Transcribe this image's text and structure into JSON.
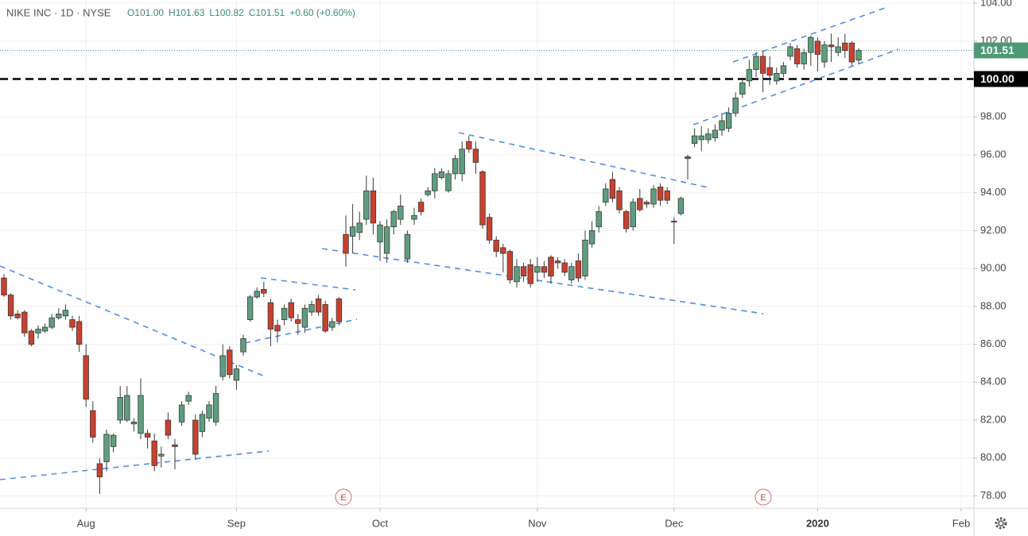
{
  "chart_data": {
    "type": "candlestick",
    "title": "NIKE INC · 1D · NYSE",
    "ohlc_text": [
      "O101.00",
      "H101.63",
      "L100.82",
      "C101.51",
      "+0.60 (+0.60%)"
    ],
    "up_color": "#5e9e7e",
    "down_color": "#c9402f",
    "wick_color": "#3a3a3a",
    "grid": true,
    "ylim": [
      77.35,
      104.17
    ],
    "yticks": [
      {
        "value": 78,
        "label": "78.00"
      },
      {
        "value": 80,
        "label": "80.00"
      },
      {
        "value": 82,
        "label": "82.00"
      },
      {
        "value": 84,
        "label": "84.00"
      },
      {
        "value": 86,
        "label": "86.00"
      },
      {
        "value": 88,
        "label": "88.00"
      },
      {
        "value": 90,
        "label": "90.00"
      },
      {
        "value": 92,
        "label": "92.00"
      },
      {
        "value": 94,
        "label": "94.00"
      },
      {
        "value": 96,
        "label": "96.00"
      },
      {
        "value": 98,
        "label": "98.00"
      },
      {
        "value": 100,
        "label": "100.00"
      },
      {
        "value": 102,
        "label": "102.00"
      },
      {
        "value": 104,
        "label": "104.00"
      }
    ],
    "price_lines": [
      {
        "value": 100,
        "label": "100.00",
        "color": "#000000",
        "style": "dashed"
      },
      {
        "value": 101.51,
        "label": "101.51",
        "color": "#4e9a75",
        "style": "dotted"
      }
    ],
    "events": [
      "E",
      "E"
    ],
    "categories": [
      null,
      null,
      null,
      null,
      null,
      null,
      null,
      null,
      null,
      null,
      null,
      null,
      "Aug",
      null,
      null,
      null,
      null,
      null,
      null,
      null,
      null,
      null,
      null,
      null,
      null,
      null,
      null,
      null,
      null,
      null,
      null,
      null,
      null,
      null,
      "Sep",
      null,
      null,
      null,
      null,
      null,
      null,
      null,
      null,
      null,
      null,
      null,
      null,
      null,
      null,
      null,
      null,
      null,
      null,
      null,
      null,
      "Oct",
      null,
      null,
      null,
      null,
      null,
      null,
      null,
      null,
      null,
      null,
      null,
      null,
      null,
      null,
      null,
      null,
      null,
      null,
      null,
      null,
      null,
      null,
      "Nov",
      null,
      null,
      null,
      null,
      null,
      null,
      null,
      null,
      null,
      null,
      null,
      null,
      null,
      null,
      null,
      null,
      null,
      null,
      null,
      "Dec",
      null,
      null,
      null,
      null,
      null,
      null,
      null,
      null,
      null,
      null,
      null,
      null,
      null,
      null,
      null,
      null,
      null,
      null,
      null,
      null,
      "2020",
      null,
      null,
      null,
      null,
      null,
      null,
      null,
      null,
      null,
      null,
      null,
      null,
      null,
      null,
      null,
      null,
      null,
      null,
      null,
      null,
      "Feb"
    ],
    "open": [
      89.5,
      88.6,
      87.6,
      87.7,
      86.7,
      86.6,
      86.7,
      86.9,
      87.4,
      87.5,
      87.3,
      87.2,
      85.4,
      82.5,
      79.7,
      79.8,
      80.6,
      82.0,
      82.0,
      81.8,
      81.3,
      81.3,
      80.9,
      80.1,
      82.0,
      80.7,
      81.9,
      83.0,
      82.0,
      81.4,
      82.1,
      81.9,
      84.3,
      85.7,
      84.1,
      85.6,
      87.3,
      88.5,
      88.9,
      88.2,
      87.0,
      87.3,
      88.2,
      87.3,
      86.9,
      87.7,
      88.4,
      88.1,
      86.9,
      88.4,
      91.8,
      91.7,
      91.9,
      92.6,
      94.1,
      91.4,
      90.8,
      92.2,
      92.6,
      90.5,
      92.6,
      93.5,
      93.9,
      94.1,
      94.8,
      94.1,
      95.0,
      95.0,
      96.7,
      96.3,
      95.1,
      92.7,
      91.5,
      91.1,
      90.9,
      89.3,
      90.1,
      90.2,
      89.8,
      90.1,
      90.6,
      90.4,
      90.3,
      89.4,
      90.4,
      89.6,
      91.3,
      92.2,
      93.5,
      94.7,
      94.1,
      93.0,
      92.2,
      93.7,
      93.5,
      93.4,
      94.3,
      94.1,
      92.5,
      92.9,
      95.9,
      96.6,
      96.8,
      96.8,
      96.9,
      97.3,
      97.4,
      98.2,
      99.2,
      99.9,
      100.5,
      101.2,
      100.6,
      99.9,
      100.3,
      101.2,
      101.6,
      100.8,
      101.4,
      102.0,
      100.9,
      101.8,
      101.4,
      101.9,
      101.9,
      101.0,
      null,
      null,
      null,
      null,
      null,
      null,
      null,
      null,
      null,
      null,
      null,
      null,
      null,
      null,
      null
    ],
    "high": [
      89.7,
      88.7,
      87.8,
      87.8,
      86.8,
      87.0,
      87.1,
      87.6,
      87.9,
      88.1,
      87.5,
      87.5,
      86.0,
      83.0,
      80.0,
      81.5,
      81.3,
      83.8,
      83.8,
      82.1,
      84.2,
      81.5,
      81.3,
      80.6,
      82.4,
      81.0,
      83.0,
      83.5,
      82.3,
      82.5,
      83.0,
      83.8,
      86.0,
      85.9,
      84.9,
      86.5,
      88.6,
      89.0,
      89.3,
      88.4,
      87.3,
      88.1,
      88.4,
      87.6,
      88.1,
      88.3,
      88.6,
      88.3,
      87.4,
      88.5,
      92.8,
      93.4,
      93.0,
      94.9,
      94.8,
      92.5,
      92.6,
      93.1,
      93.9,
      92.0,
      93.2,
      93.7,
      94.3,
      95.3,
      95.3,
      95.2,
      96.0,
      96.7,
      97.0,
      96.7,
      95.2,
      92.9,
      91.7,
      91.3,
      91.0,
      90.5,
      90.3,
      90.5,
      90.6,
      90.4,
      90.7,
      90.6,
      90.5,
      90.3,
      90.8,
      92.0,
      92.5,
      93.3,
      94.5,
      95.1,
      94.3,
      93.1,
      93.7,
      94.2,
      93.6,
      94.4,
      94.5,
      94.3,
      92.7,
      93.8,
      96.0,
      97.4,
      97.5,
      97.4,
      97.6,
      98.2,
      98.5,
      99.3,
      100.0,
      101.0,
      101.4,
      101.5,
      101.2,
      100.6,
      100.9,
      101.9,
      101.8,
      101.6,
      102.3,
      102.2,
      102.0,
      102.4,
      102.2,
      102.4,
      102.0,
      101.63,
      null,
      null,
      null,
      null,
      null,
      null,
      null,
      null,
      null,
      null,
      null,
      null,
      null,
      null,
      null
    ],
    "low": [
      88.5,
      87.3,
      87.3,
      86.4,
      85.9,
      86.3,
      86.6,
      86.8,
      87.3,
      87.3,
      86.7,
      85.6,
      82.7,
      80.8,
      78.1,
      79.3,
      80.3,
      81.8,
      81.9,
      81.4,
      81.0,
      80.5,
      79.3,
      79.5,
      81.0,
      79.4,
      81.7,
      82.8,
      79.9,
      81.1,
      81.9,
      81.7,
      84.1,
      84.2,
      83.6,
      85.4,
      87.2,
      88.4,
      88.5,
      85.9,
      86.1,
      87.0,
      87.2,
      86.5,
      86.6,
      87.5,
      87.5,
      86.6,
      86.7,
      87.0,
      90.1,
      90.8,
      91.5,
      92.3,
      91.8,
      90.4,
      90.3,
      91.8,
      92.3,
      90.3,
      92.3,
      92.8,
      93.8,
      93.7,
      94.7,
      94.0,
      94.7,
      94.6,
      96.1,
      95.0,
      92.1,
      91.3,
      90.6,
      89.8,
      89.2,
      89.0,
      89.3,
      89.0,
      89.3,
      89.5,
      89.2,
      90.0,
      89.6,
      89.2,
      89.3,
      89.4,
      91.1,
      91.9,
      93.3,
      93.5,
      92.9,
      91.9,
      92.0,
      93.0,
      93.2,
      93.2,
      93.3,
      93.4,
      91.3,
      92.8,
      94.7,
      96.4,
      96.2,
      96.6,
      96.7,
      97.0,
      97.2,
      98.0,
      99.0,
      99.6,
      100.1,
      99.3,
      99.7,
      99.7,
      100.1,
      101.0,
      100.6,
      100.5,
      100.7,
      100.4,
      100.6,
      100.9,
      101.2,
      101.1,
      100.7,
      100.82,
      null,
      null,
      null,
      null,
      null,
      null,
      null,
      null,
      null,
      null,
      null,
      null,
      null,
      null,
      null
    ],
    "close": [
      88.6,
      87.5,
      87.4,
      86.6,
      86.0,
      86.8,
      86.9,
      87.4,
      87.6,
      87.8,
      86.9,
      86.0,
      83.1,
      81.1,
      79.0,
      81.25,
      81.2,
      83.2,
      83.3,
      81.9,
      83.3,
      81.1,
      79.6,
      80.2,
      81.2,
      80.6,
      82.8,
      83.3,
      80.2,
      82.3,
      82.8,
      83.4,
      85.4,
      84.4,
      84.7,
      86.3,
      88.5,
      88.8,
      88.7,
      86.8,
      86.7,
      87.9,
      87.4,
      87.1,
      87.9,
      88.1,
      87.7,
      86.7,
      87.2,
      87.2,
      90.8,
      92.2,
      92.4,
      94.1,
      92.4,
      92.3,
      92.2,
      93.0,
      93.3,
      91.8,
      92.8,
      93.0,
      94.1,
      95.0,
      95.1,
      95.0,
      95.8,
      96.3,
      96.3,
      95.6,
      92.3,
      91.5,
      90.9,
      90.8,
      89.4,
      90.1,
      89.6,
      89.2,
      90.1,
      89.8,
      89.6,
      90.3,
      89.8,
      90.1,
      89.5,
      91.5,
      92.0,
      93.0,
      94.2,
      93.7,
      93.1,
      92.1,
      93.5,
      93.1,
      93.4,
      94.2,
      93.6,
      93.6,
      92.45,
      93.7,
      95.8,
      97.0,
      97.0,
      97.1,
      97.3,
      97.8,
      98.2,
      99.0,
      99.8,
      100.5,
      101.2,
      100.3,
      100.2,
      100.3,
      100.7,
      101.7,
      100.8,
      101.4,
      102.2,
      101.3,
      101.8,
      101.7,
      101.7,
      101.5,
      100.9,
      101.51,
      null,
      null,
      null,
      null,
      null,
      null,
      null,
      null,
      null,
      null,
      null,
      null,
      null,
      null,
      null
    ]
  }
}
